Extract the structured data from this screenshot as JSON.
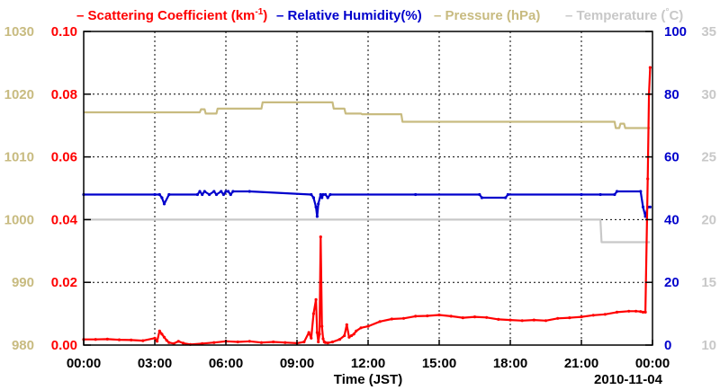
{
  "chart_data": {
    "type": "line",
    "legend": [
      {
        "text": "Scattering Coefficient (km",
        "sup": "-1",
        "tail": ")",
        "color": "#ff0000"
      },
      {
        "text": "Relative Humidity(%)",
        "color": "#0000cc"
      },
      {
        "text": "Pressure (hPa)",
        "color": "#c8bb80"
      },
      {
        "text": "Temperature (",
        "sup": "°",
        "tail": "C)",
        "color": "#c8c8c8"
      }
    ],
    "dash": "–",
    "xlabel": "Time (JST)",
    "date_label": "2010-11-04",
    "x_ticks": [
      "00:00",
      "03:00",
      "06:00",
      "09:00",
      "12:00",
      "15:00",
      "18:00",
      "21:00",
      "00:00"
    ],
    "xlim": [
      0,
      24
    ],
    "axes": {
      "pressure": {
        "ticks": [
          "980",
          "990",
          "1000",
          "1010",
          "1020",
          "1030"
        ],
        "ylim": [
          980,
          1030
        ],
        "color": "#c8bb80"
      },
      "scattering": {
        "ticks": [
          "0.00",
          "0.02",
          "0.04",
          "0.06",
          "0.08",
          "0.10"
        ],
        "ylim": [
          0,
          0.1
        ],
        "color": "#ff0000"
      },
      "humidity": {
        "ticks": [
          "0",
          "20",
          "40",
          "60",
          "80",
          "100"
        ],
        "ylim": [
          0,
          100
        ],
        "color": "#0000cc"
      },
      "temperature": {
        "ticks": [
          "10",
          "15",
          "20",
          "25",
          "30",
          "35"
        ],
        "ylim": [
          10,
          35
        ],
        "color": "#c8c8c8"
      }
    },
    "grid": true,
    "series": [
      {
        "name": "Pressure (hPa)",
        "axis": "pressure",
        "color": "#c8bb80",
        "markers": false,
        "x": [
          0,
          4.9,
          4.95,
          5.1,
          5.15,
          5.6,
          5.65,
          5.8,
          5.85,
          7.5,
          7.55,
          10.5,
          10.55,
          11.0,
          11.05,
          11.7,
          11.75,
          13.4,
          13.45,
          22.4,
          22.45,
          22.6,
          22.65,
          22.8,
          22.85,
          23.9
        ],
        "y": [
          1017.1,
          1017.1,
          1017.6,
          1017.6,
          1016.9,
          1016.9,
          1017.7,
          1017.7,
          1017.7,
          1017.7,
          1018.7,
          1018.7,
          1017.7,
          1017.7,
          1016.9,
          1016.9,
          1016.8,
          1016.8,
          1015.6,
          1015.6,
          1014.6,
          1014.6,
          1015.3,
          1015.3,
          1014.6,
          1014.6
        ]
      },
      {
        "name": "Temperature (C)",
        "axis": "temperature",
        "color": "#c8c8c8",
        "markers": false,
        "x": [
          0,
          21.8,
          21.85,
          23.9
        ],
        "y": [
          20,
          20,
          18.2,
          18.2
        ]
      },
      {
        "name": "Relative Humidity(%)",
        "axis": "humidity",
        "color": "#0000cc",
        "markers": true,
        "x": [
          0,
          3.0,
          3.2,
          3.3,
          3.4,
          3.6,
          4.8,
          4.9,
          5.0,
          5.1,
          5.3,
          5.5,
          5.6,
          5.8,
          5.9,
          6.0,
          6.1,
          6.2,
          6.3,
          7.0,
          9.6,
          9.7,
          9.8,
          9.85,
          9.9,
          10.0,
          10.05,
          10.1,
          10.2,
          10.3,
          10.4,
          14.0,
          16.7,
          16.8,
          17.8,
          17.9,
          21.0,
          21.8,
          22.4,
          22.5,
          23.5,
          23.6,
          23.7,
          23.8,
          23.9
        ],
        "y": [
          48,
          48,
          48,
          47,
          45,
          48,
          48,
          49,
          48,
          49,
          48,
          49,
          48,
          49,
          48,
          49,
          49,
          48,
          49,
          49,
          48,
          47,
          44,
          41,
          45,
          48,
          47,
          48,
          48,
          47,
          48,
          48,
          48,
          47,
          47,
          48,
          48,
          48,
          48,
          49,
          49,
          44,
          41,
          44,
          44
        ]
      },
      {
        "name": "Scattering Coefficient (km-1)",
        "axis": "scattering",
        "color": "#ff0000",
        "markers": true,
        "x": [
          0,
          0.5,
          1.0,
          1.5,
          2.0,
          2.5,
          3.0,
          3.1,
          3.2,
          3.3,
          3.4,
          3.5,
          3.6,
          3.8,
          4.0,
          4.2,
          4.5,
          5.0,
          5.5,
          6.0,
          6.5,
          7.0,
          7.5,
          8.0,
          8.5,
          9.0,
          9.3,
          9.5,
          9.6,
          9.7,
          9.8,
          9.85,
          9.9,
          9.95,
          10.0,
          10.05,
          10.1,
          10.15,
          10.2,
          10.3,
          10.5,
          10.8,
          11.0,
          11.1,
          11.2,
          11.3,
          11.4,
          11.5,
          11.7,
          12.0,
          12.5,
          13.0,
          13.5,
          14.0,
          14.5,
          15.0,
          15.5,
          16.0,
          16.5,
          17.0,
          17.5,
          18.0,
          18.5,
          19.0,
          19.5,
          20.0,
          20.5,
          21.0,
          21.5,
          22.0,
          22.5,
          23.0,
          23.3,
          23.5,
          23.6,
          23.7,
          23.8,
          23.85,
          23.9
        ],
        "y": [
          0.0018,
          0.0018,
          0.0019,
          0.0017,
          0.0016,
          0.0014,
          0.0022,
          0.0012,
          0.0045,
          0.0035,
          0.0025,
          0.0015,
          0.0008,
          0.0005,
          0.0012,
          0.0006,
          0.0002,
          0.0005,
          0.0008,
          0.0012,
          0.001,
          0.0012,
          0.0008,
          0.001,
          0.0008,
          0.0006,
          0.001,
          0.004,
          0.0022,
          0.01,
          0.0145,
          0.004,
          0.001,
          0.0035,
          0.0345,
          0.006,
          0.002,
          0.001,
          0.0008,
          0.0007,
          0.001,
          0.0018,
          0.003,
          0.0065,
          0.0025,
          0.003,
          0.0035,
          0.0045,
          0.0055,
          0.006,
          0.0075,
          0.0083,
          0.0085,
          0.0092,
          0.0093,
          0.0096,
          0.0092,
          0.0087,
          0.009,
          0.0088,
          0.0082,
          0.008,
          0.0078,
          0.008,
          0.0078,
          0.0085,
          0.0087,
          0.009,
          0.0095,
          0.0098,
          0.0105,
          0.0108,
          0.0108,
          0.0107,
          0.0105,
          0.0105,
          0.053,
          0.08,
          0.0885
        ]
      }
    ]
  }
}
